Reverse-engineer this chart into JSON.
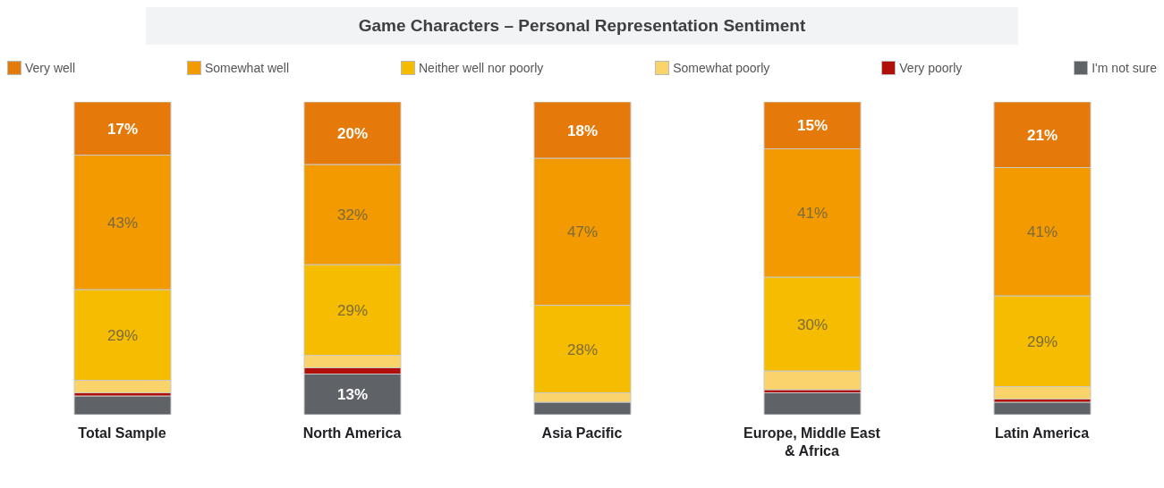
{
  "chart_data": {
    "type": "bar",
    "title": "Game Characters – Personal Representation Sentiment",
    "categories": [
      "Total Sample",
      "North America",
      "Asia Pacific",
      "Europe, Middle East & Africa",
      "Latin America"
    ],
    "stacked": true,
    "legend": "top",
    "ylim": [
      0,
      100
    ],
    "grid": false,
    "series": [
      {
        "name": "I'm not sure",
        "color": "#5f6368",
        "values": [
          6,
          13,
          4,
          7,
          4
        ],
        "value_labels": [
          null,
          "13%",
          null,
          null,
          null
        ]
      },
      {
        "name": "Very poorly",
        "color": "#b00f0a",
        "values": [
          1,
          2,
          0,
          1,
          1
        ],
        "value_labels": [
          null,
          null,
          null,
          null,
          null
        ]
      },
      {
        "name": "Somewhat poorly",
        "color": "#fad46a",
        "values": [
          4,
          4,
          3,
          6,
          4
        ],
        "value_labels": [
          null,
          null,
          null,
          null,
          null
        ]
      },
      {
        "name": "Neither well nor poorly",
        "color": "#f5bc00",
        "values": [
          29,
          29,
          28,
          30,
          29
        ],
        "value_labels": [
          "29%",
          "29%",
          "28%",
          "30%",
          "29%"
        ]
      },
      {
        "name": "Somewhat well",
        "color": "#f29a00",
        "values": [
          43,
          32,
          47,
          41,
          41
        ],
        "value_labels": [
          "43%",
          "32%",
          "47%",
          "41%",
          "41%"
        ]
      },
      {
        "name": "Very well",
        "color": "#e57a0a",
        "values": [
          17,
          20,
          18,
          15,
          21
        ],
        "value_labels": [
          "17%",
          "20%",
          "18%",
          "15%",
          "21%"
        ]
      }
    ]
  }
}
